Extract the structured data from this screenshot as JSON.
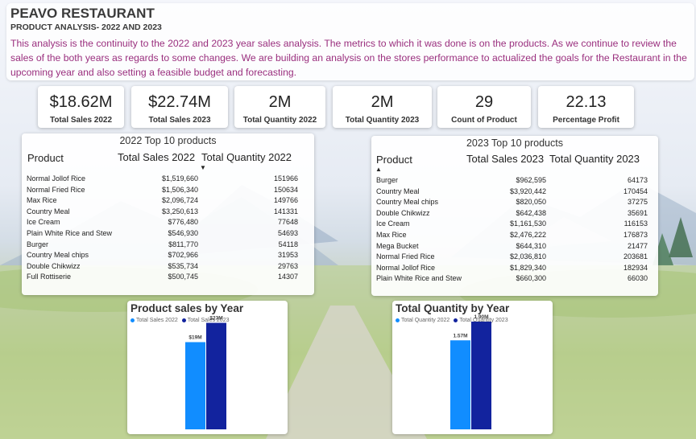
{
  "header": {
    "title": "PEAVO RESTAURANT",
    "subtitle": "PRODUCT ANALYSIS- 2022 AND 2023",
    "description": "This analysis is the continuity to the 2022 and 2023 year sales analysis. The metrics to which it was done is on the products. As we continue to review the sales of the both years as regards to some changes. We are building an analysis on the stores performance to actualized the goals for the Restaurant in the upcoming year and also setting a feasible budget and forecasting."
  },
  "kpis": [
    {
      "value": "$18.62M",
      "label": "Total Sales 2022"
    },
    {
      "value": "$22.74M",
      "label": "Total Sales 2023"
    },
    {
      "value": "2M",
      "label": "Total Quantity 2022"
    },
    {
      "value": "2M",
      "label": "Total Quantity 2023"
    },
    {
      "value": "29",
      "label": "Count of Product"
    },
    {
      "value": "22.13",
      "label": "Percentage Profit"
    }
  ],
  "table2022": {
    "title": "2022 Top 10 products",
    "columns": [
      "Product",
      "Total Sales 2022",
      "Total Quantity 2022"
    ],
    "sort_icon": "▼",
    "rows": [
      [
        "Normal Jollof Rice",
        "$1,519,660",
        "151966"
      ],
      [
        "Normal Fried Rice",
        "$1,506,340",
        "150634"
      ],
      [
        "Max Rice",
        "$2,096,724",
        "149766"
      ],
      [
        "Country Meal",
        "$3,250,613",
        "141331"
      ],
      [
        "Ice Cream",
        "$776,480",
        "77648"
      ],
      [
        "Plain White Rice and Stew",
        "$546,930",
        "54693"
      ],
      [
        "Burger",
        "$811,770",
        "54118"
      ],
      [
        "Country Meal chips",
        "$702,966",
        "31953"
      ],
      [
        "Double Chikwizz",
        "$535,734",
        "29763"
      ],
      [
        "Full Rottiserie",
        "$500,745",
        "14307"
      ]
    ]
  },
  "table2023": {
    "title": "2023 Top 10 products",
    "columns": [
      "Product",
      "Total Sales 2023",
      "Total Quantity 2023"
    ],
    "sort_icon": "▲",
    "rows": [
      [
        "Burger",
        "$962,595",
        "64173"
      ],
      [
        "Country Meal",
        "$3,920,442",
        "170454"
      ],
      [
        "Country Meal chips",
        "$820,050",
        "37275"
      ],
      [
        "Double Chikwizz",
        "$642,438",
        "35691"
      ],
      [
        "Ice Cream",
        "$1,161,530",
        "116153"
      ],
      [
        "Max Rice",
        "$2,476,222",
        "176873"
      ],
      [
        "Mega Bucket",
        "$644,310",
        "21477"
      ],
      [
        "Normal Fried Rice",
        "$2,036,810",
        "203681"
      ],
      [
        "Normal Jollof Rice",
        "$1,829,340",
        "182934"
      ],
      [
        "Plain White Rice and Stew",
        "$660,300",
        "66030"
      ]
    ]
  },
  "chart_data": [
    {
      "type": "bar",
      "title": "Product sales by Year",
      "series": [
        {
          "name": "Total Sales 2022",
          "values": [
            18.62
          ],
          "label": "$19M",
          "color": "#118dff"
        },
        {
          "name": "Total Sales 2023",
          "values": [
            22.74
          ],
          "label": "$23M",
          "color": "#12239e"
        }
      ],
      "ylim": [
        0,
        23
      ]
    },
    {
      "type": "bar",
      "title": "Total Quantity by Year",
      "series": [
        {
          "name": "Total Quantity 2022",
          "values": [
            1.57
          ],
          "label": "1.57M",
          "color": "#118dff"
        },
        {
          "name": "Total Quantity 2023",
          "values": [
            1.9
          ],
          "label": "1.90M",
          "color": "#12239e"
        }
      ],
      "ylim": [
        0,
        1.9
      ]
    }
  ]
}
